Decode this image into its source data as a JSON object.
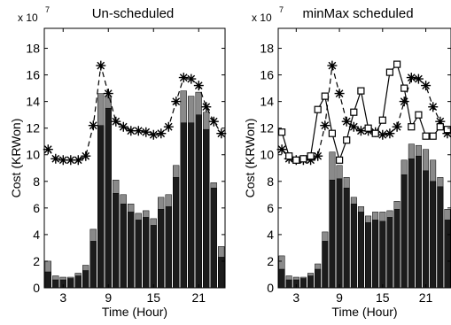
{
  "chart_data": [
    {
      "type": "bar",
      "title": "Un-scheduled",
      "multiplier": "x 10",
      "multiplier_exp": "7",
      "xlabel": "Time (Hour)",
      "ylabel": "Cost (KRWon)",
      "xlim": [
        0.5,
        24.5
      ],
      "ylim": [
        0,
        19.5
      ],
      "x_ticks": [
        3,
        9,
        15,
        21
      ],
      "y_ticks": [
        0,
        2,
        4,
        6,
        8,
        10,
        12,
        14,
        16,
        18
      ],
      "hours": [
        1,
        2,
        3,
        4,
        5,
        6,
        7,
        8,
        9,
        10,
        11,
        12,
        13,
        14,
        15,
        16,
        17,
        18,
        19,
        20,
        21,
        22,
        23,
        24
      ],
      "series": [
        {
          "style": "dark-bar",
          "color": "#1c1c1c",
          "values": [
            1.2,
            0.6,
            0.6,
            0.7,
            0.9,
            1.3,
            3.5,
            12.2,
            13.5,
            7.1,
            6.3,
            5.7,
            5.1,
            5.3,
            4.7,
            5.9,
            6.1,
            8.3,
            12.4,
            12.4,
            13.0,
            11.9,
            7.5,
            2.3
          ]
        },
        {
          "style": "gray-bar",
          "color": "#8a8a8a",
          "values": [
            2.0,
            0.9,
            0.8,
            0.8,
            1.1,
            1.7,
            4.4,
            14.6,
            14.4,
            8.1,
            7.0,
            6.3,
            5.6,
            5.8,
            5.2,
            6.8,
            7.0,
            9.2,
            14.8,
            14.4,
            14.7,
            13.2,
            7.9,
            3.1
          ]
        },
        {
          "style": "dashed-star",
          "color": "#000000",
          "values": [
            10.4,
            9.7,
            9.6,
            9.6,
            9.6,
            9.9,
            12.2,
            16.7,
            14.6,
            12.5,
            12.1,
            11.8,
            11.8,
            11.7,
            11.5,
            11.6,
            12.1,
            14.0,
            15.8,
            15.7,
            15.2,
            13.6,
            12.5,
            11.6
          ]
        }
      ]
    },
    {
      "type": "bar",
      "title": "minMax scheduled",
      "multiplier": "x 10",
      "multiplier_exp": "7",
      "xlabel": "Time (Hour)",
      "ylabel": "Cost (KRWon)",
      "xlim": [
        0.5,
        24.5
      ],
      "ylim": [
        0,
        19.5
      ],
      "x_ticks": [
        3,
        9,
        15,
        21
      ],
      "y_ticks": [
        0,
        2,
        4,
        6,
        8,
        10,
        12,
        14,
        16,
        18
      ],
      "hours": [
        1,
        2,
        3,
        4,
        5,
        6,
        7,
        8,
        9,
        10,
        11,
        12,
        13,
        14,
        15,
        16,
        17,
        18,
        19,
        20,
        21,
        22,
        23,
        24
      ],
      "series": [
        {
          "style": "dark-bar",
          "color": "#1c1c1c",
          "values": [
            1.4,
            0.6,
            0.6,
            0.7,
            0.9,
            1.4,
            3.5,
            8.1,
            8.2,
            7.5,
            6.3,
            5.7,
            4.9,
            5.1,
            5.0,
            5.3,
            5.9,
            8.5,
            9.7,
            9.9,
            8.8,
            8.0,
            7.6,
            5.1
          ]
        },
        {
          "style": "gray-bar",
          "color": "#8a8a8a",
          "values": [
            2.4,
            0.9,
            0.8,
            0.8,
            1.1,
            1.8,
            4.2,
            10.2,
            9.2,
            8.3,
            6.8,
            6.1,
            5.4,
            5.7,
            5.7,
            5.8,
            6.5,
            9.6,
            10.8,
            10.7,
            10.4,
            9.6,
            8.3,
            5.9
          ]
        },
        {
          "style": "dashed-star",
          "color": "#000000",
          "values": [
            10.4,
            9.7,
            9.6,
            9.6,
            9.6,
            9.9,
            12.2,
            16.7,
            14.6,
            12.5,
            12.1,
            11.8,
            11.8,
            11.7,
            11.5,
            11.6,
            12.1,
            14.0,
            15.8,
            15.7,
            15.2,
            13.6,
            12.5,
            11.6
          ]
        },
        {
          "style": "solid-square",
          "color": "#000000",
          "values": [
            11.7,
            9.9,
            9.6,
            9.7,
            9.9,
            13.4,
            14.4,
            11.6,
            9.6,
            11.1,
            13.2,
            14.8,
            12.0,
            11.6,
            12.6,
            16.2,
            16.8,
            15.0,
            12.1,
            13.0,
            11.4,
            11.4,
            12.1,
            11.9
          ]
        }
      ]
    }
  ]
}
